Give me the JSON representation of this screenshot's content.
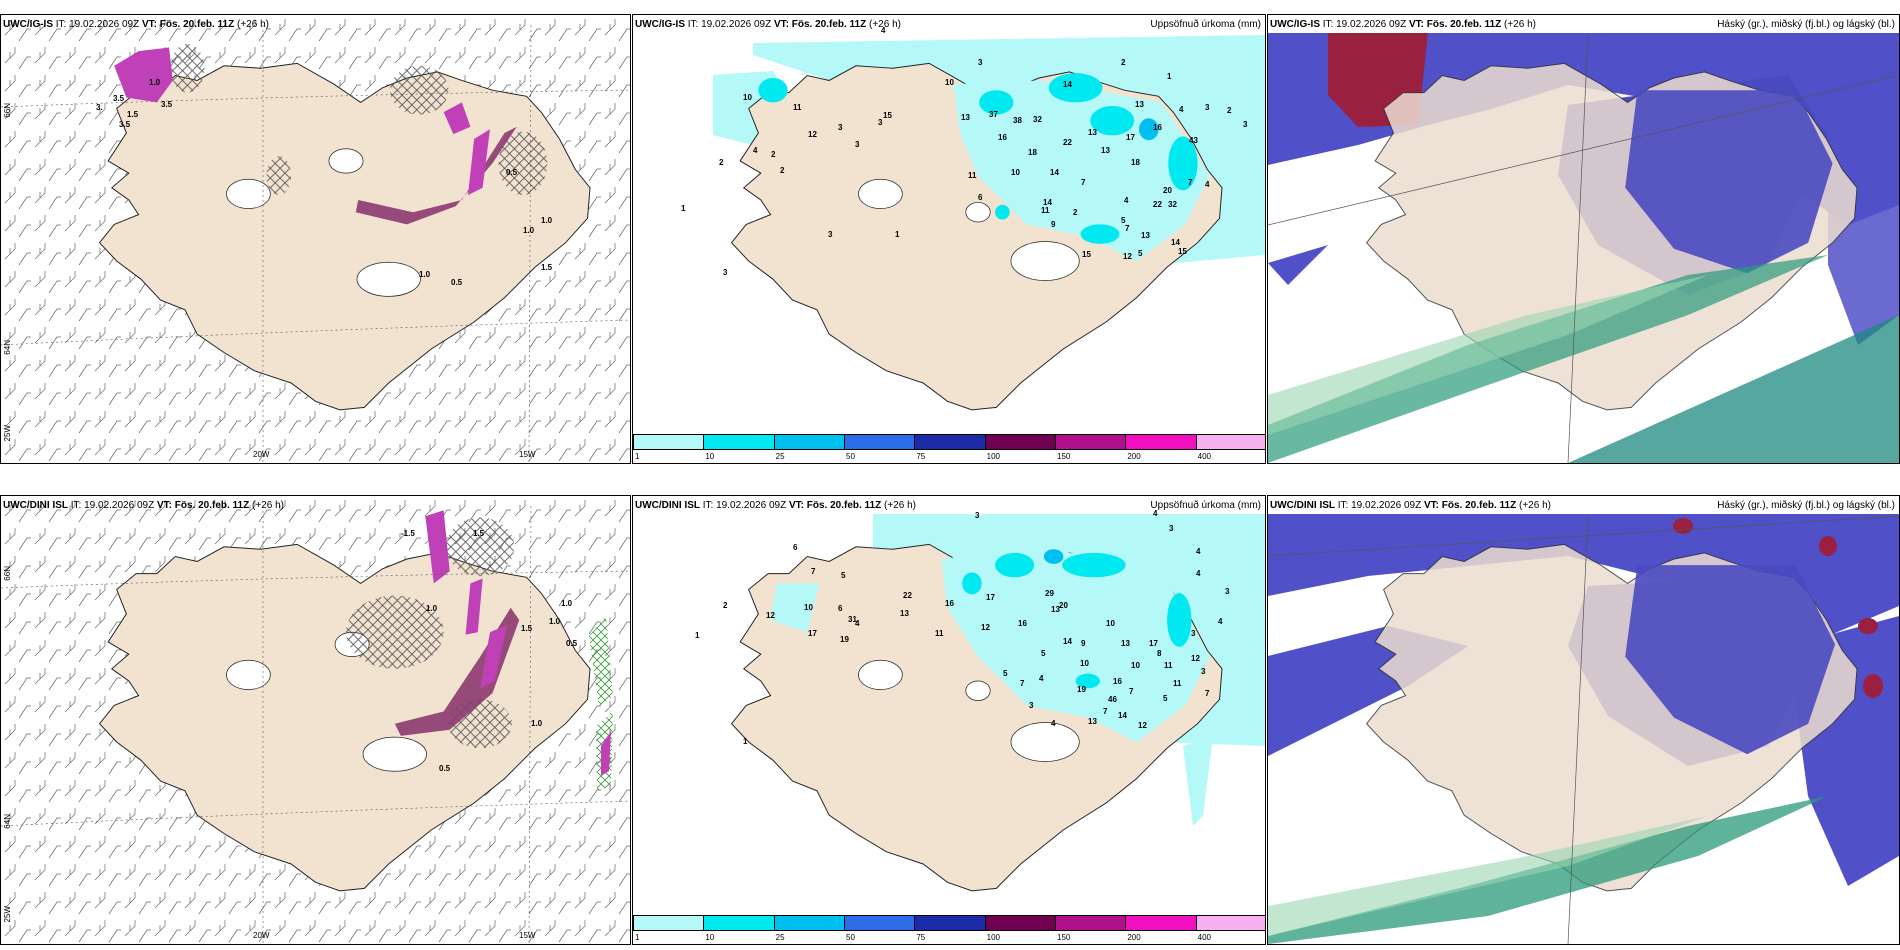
{
  "panels": {
    "p1": {
      "model": "UWC/IG-IS",
      "it": "IT: 19.02.2026 09Z",
      "vt": "VT: Fös. 20.feb. 11Z",
      "lead": "(+26 h)"
    },
    "p2": {
      "model": "UWC/IG-IS",
      "it": "IT: 19.02.2026 09Z",
      "vt": "VT: Fös. 20.feb. 11Z",
      "lead": "(+26 h)",
      "title": "Uppsöfnuð úrkoma (mm)"
    },
    "p3": {
      "model": "UWC/IG-IS",
      "it": "IT: 19.02.2026 09Z",
      "vt": "VT: Fös. 20.feb. 11Z",
      "lead": "(+26 h)",
      "title": "Háský (gr.), miðský (fj.bl.) og lágský (bl.)"
    },
    "p4": {
      "model": "UWC/DINI ISL",
      "it": "IT: 19.02.2026 09Z",
      "vt": "VT: Fös. 20.feb. 11Z",
      "lead": "(+26 h)"
    },
    "p5": {
      "model": "UWC/DINI ISL",
      "it": "IT: 19.02.2026 09Z",
      "vt": "VT: Fös. 20.feb. 11Z",
      "lead": "(+26 h)",
      "title": "Uppsöfnuð úrkoma (mm)"
    },
    "p6": {
      "model": "UWC/DINI ISL",
      "it": "IT: 19.02.2026 09Z",
      "vt": "VT: Fös. 20.feb. 11Z",
      "lead": "(+26 h)",
      "title": "Háský (gr.), miðský (fj.bl.) og lágský (bl.)"
    }
  },
  "axes": {
    "lat66": "66N",
    "lat64": "64N",
    "lon20": "20W",
    "lon15": "15W",
    "lon25": "25W"
  },
  "colorbar": {
    "ticks": [
      "1",
      "10",
      "25",
      "50",
      "75",
      "100",
      "150",
      "200",
      "400"
    ],
    "colors": [
      "#b4f8f8",
      "#00e8f0",
      "#00c0f0",
      "#2c6ce8",
      "#1c2ca8",
      "#700050",
      "#b0108c",
      "#f010c0",
      "#f8b0f0"
    ]
  },
  "map_values": {
    "p1": [
      "1.0",
      "3.5",
      "3.5",
      "3.",
      "1.5",
      "3.5",
      "1.0",
      "0.5",
      "1.0",
      "0.5",
      "1.0",
      "1.5"
    ],
    "p2": [
      "4",
      "3",
      "2",
      "1",
      "3",
      "10",
      "14",
      "13",
      "4",
      "2",
      "3",
      "3",
      "3",
      "10",
      "11",
      "15",
      "13",
      "37",
      "38",
      "16",
      "32",
      "13",
      "17",
      "16",
      "18",
      "22",
      "13",
      "18",
      "14",
      "11",
      "10",
      "6",
      "12",
      "2",
      "4",
      "2",
      "2",
      "3",
      "14",
      "7",
      "7",
      "4",
      "43",
      "32",
      "20",
      "22",
      "4",
      "2",
      "11",
      "5",
      "9",
      "15",
      "3",
      "1",
      "7",
      "13",
      "14",
      "5",
      "12",
      "15",
      "1",
      "3"
    ],
    "p4": [
      "-1.5",
      "1.5",
      "1.0",
      "1.0",
      "1.5",
      "1.0",
      "0.5",
      "1.0",
      "0.5"
    ],
    "p5": [
      "3",
      "4",
      "3",
      "4",
      "4",
      "3",
      "4",
      "6",
      "7",
      "5",
      "2",
      "6",
      "4",
      "1",
      "12",
      "17",
      "10",
      "19",
      "31",
      "22",
      "13",
      "11",
      "16",
      "12",
      "17",
      "16",
      "29",
      "20",
      "14",
      "13",
      "9",
      "10",
      "10",
      "13",
      "7",
      "17",
      "8",
      "12",
      "5",
      "5",
      "7",
      "4",
      "19",
      "46",
      "16",
      "3",
      "4",
      "13",
      "14",
      "12",
      "7",
      "10",
      "11",
      "11",
      "3",
      "5",
      "3",
      "7",
      "1"
    ]
  }
}
